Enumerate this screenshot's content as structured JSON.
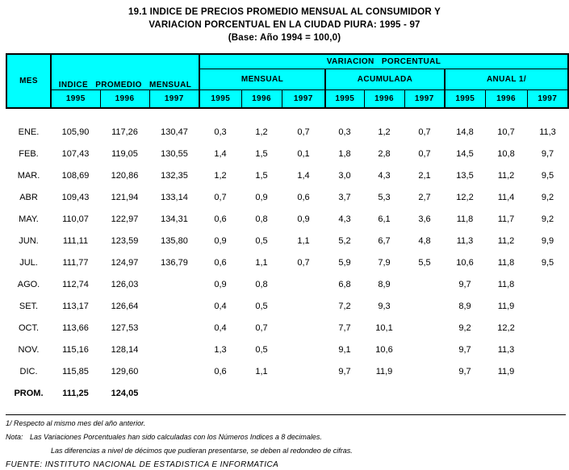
{
  "title": {
    "line1": "19.1 INDICE DE PRECIOS PROMEDIO MENSUAL AL CONSUMIDOR Y",
    "line2": "VARIACION PORCENTUAL EN LA CIUDAD PIURA: 1995 - 97",
    "line3": "(Base: Año 1994 = 100,0)"
  },
  "table": {
    "colors": {
      "header_bg": "#00FFFF",
      "border": "#000000",
      "text": "#000000"
    },
    "header": {
      "mes": "MES",
      "indice_promedio": "INDICE PROMEDIO MENSUAL",
      "variacion": "VARIACION PORCENTUAL",
      "groups": [
        "MENSUAL",
        "ACUMULADA",
        "ANUAL 1/"
      ],
      "years": [
        "1995",
        "1996",
        "1997"
      ]
    },
    "rows": [
      {
        "mes": "ENE.",
        "cells": [
          "105,90",
          "117,26",
          "130,47",
          "0,3",
          "1,2",
          "0,7",
          "0,3",
          "1,2",
          "0,7",
          "14,8",
          "10,7",
          "11,3"
        ]
      },
      {
        "mes": "FEB.",
        "cells": [
          "107,43",
          "119,05",
          "130,55",
          "1,4",
          "1,5",
          "0,1",
          "1,8",
          "2,8",
          "0,7",
          "14,5",
          "10,8",
          "9,7"
        ]
      },
      {
        "mes": "MAR.",
        "cells": [
          "108,69",
          "120,86",
          "132,35",
          "1,2",
          "1,5",
          "1,4",
          "3,0",
          "4,3",
          "2,1",
          "13,5",
          "11,2",
          "9,5"
        ]
      },
      {
        "mes": "ABR",
        "cells": [
          "109,43",
          "121,94",
          "133,14",
          "0,7",
          "0,9",
          "0,6",
          "3,7",
          "5,3",
          "2,7",
          "12,2",
          "11,4",
          "9,2"
        ]
      },
      {
        "mes": "MAY.",
        "cells": [
          "110,07",
          "122,97",
          "134,31",
          "0,6",
          "0,8",
          "0,9",
          "4,3",
          "6,1",
          "3,6",
          "11,8",
          "11,7",
          "9,2"
        ]
      },
      {
        "mes": "JUN.",
        "cells": [
          "111,11",
          "123,59",
          "135,80",
          "0,9",
          "0,5",
          "1,1",
          "5,2",
          "6,7",
          "4,8",
          "11,3",
          "11,2",
          "9,9"
        ]
      },
      {
        "mes": "JUL.",
        "cells": [
          "111,77",
          "124,97",
          "136,79",
          "0,6",
          "1,1",
          "0,7",
          "5,9",
          "7,9",
          "5,5",
          "10,6",
          "11,8",
          "9,5"
        ]
      },
      {
        "mes": "AGO.",
        "cells": [
          "112,74",
          "126,03",
          "",
          "0,9",
          "0,8",
          "",
          "6,8",
          "8,9",
          "",
          "9,7",
          "11,8",
          ""
        ]
      },
      {
        "mes": "SET.",
        "cells": [
          "113,17",
          "126,64",
          "",
          "0,4",
          "0,5",
          "",
          "7,2",
          "9,3",
          "",
          "8,9",
          "11,9",
          ""
        ]
      },
      {
        "mes": "OCT.",
        "cells": [
          "113,66",
          "127,53",
          "",
          "0,4",
          "0,7",
          "",
          "7,7",
          "10,1",
          "",
          "9,2",
          "12,2",
          ""
        ]
      },
      {
        "mes": "NOV.",
        "cells": [
          "115,16",
          "128,14",
          "",
          "1,3",
          "0,5",
          "",
          "9,1",
          "10,6",
          "",
          "9,7",
          "11,3",
          ""
        ]
      },
      {
        "mes": "DIC.",
        "cells": [
          "115,85",
          "129,60",
          "",
          "0,6",
          "1,1",
          "",
          "9,7",
          "11,9",
          "",
          "9,7",
          "11,9",
          ""
        ]
      }
    ],
    "prom_row": {
      "mes": "PROM.",
      "cells": [
        "111,25",
        "124,05",
        "",
        "",
        "",
        "",
        "",
        "",
        "",
        "",
        "",
        ""
      ]
    }
  },
  "footnotes": {
    "note1": "1/ Respecto al mismo mes del año anterior.",
    "nota_label": "Nota:",
    "nota_line1": "Las Variaciones Porcentuales han sido calculadas con los Números Indices a 8 decimales.",
    "nota_line2": "Las diferencias a nivel de décimos que pudieran presentarse, se deben al redondeo de cifras.",
    "fuente": "FUENTE: INSTITUTO NACIONAL DE ESTADISTICA E INFORMATICA"
  }
}
